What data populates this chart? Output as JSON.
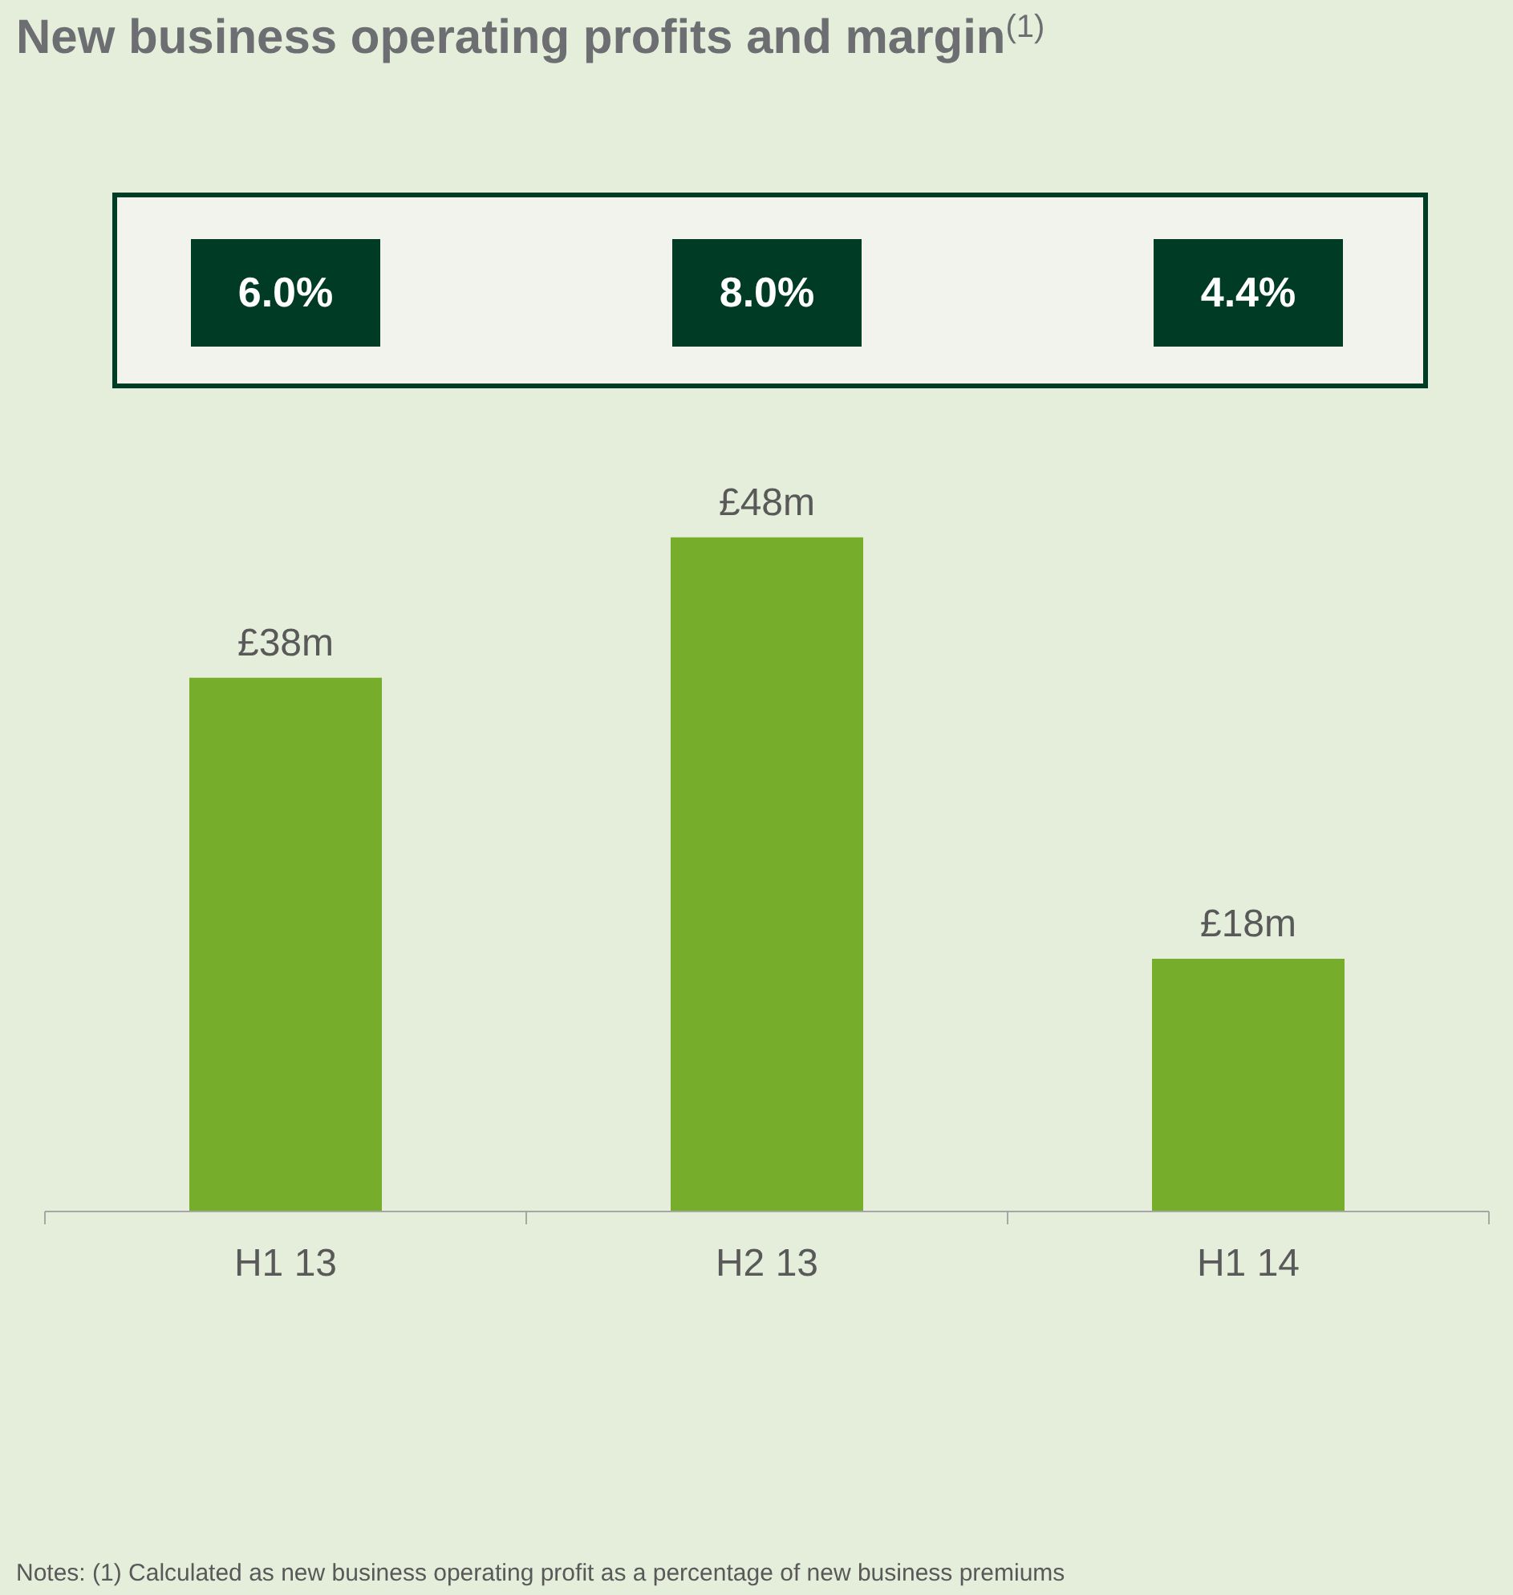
{
  "chart_data": {
    "type": "bar",
    "title": "New business operating profits and margin$^{(1)}$",
    "categories": [
      "H1 13",
      "H2 13",
      "H1 14"
    ],
    "values": [
      38,
      48,
      18
    ],
    "value_labels": [
      "£38m",
      "£48m",
      "£18m"
    ],
    "color": "#76ad2a",
    "annotations": [
      "6.0%",
      "8.0%",
      "4.4%",
      "Notes: (1)  Calculated as new business operating profit as a percentage of new business premiums"
    ]
  }
}
